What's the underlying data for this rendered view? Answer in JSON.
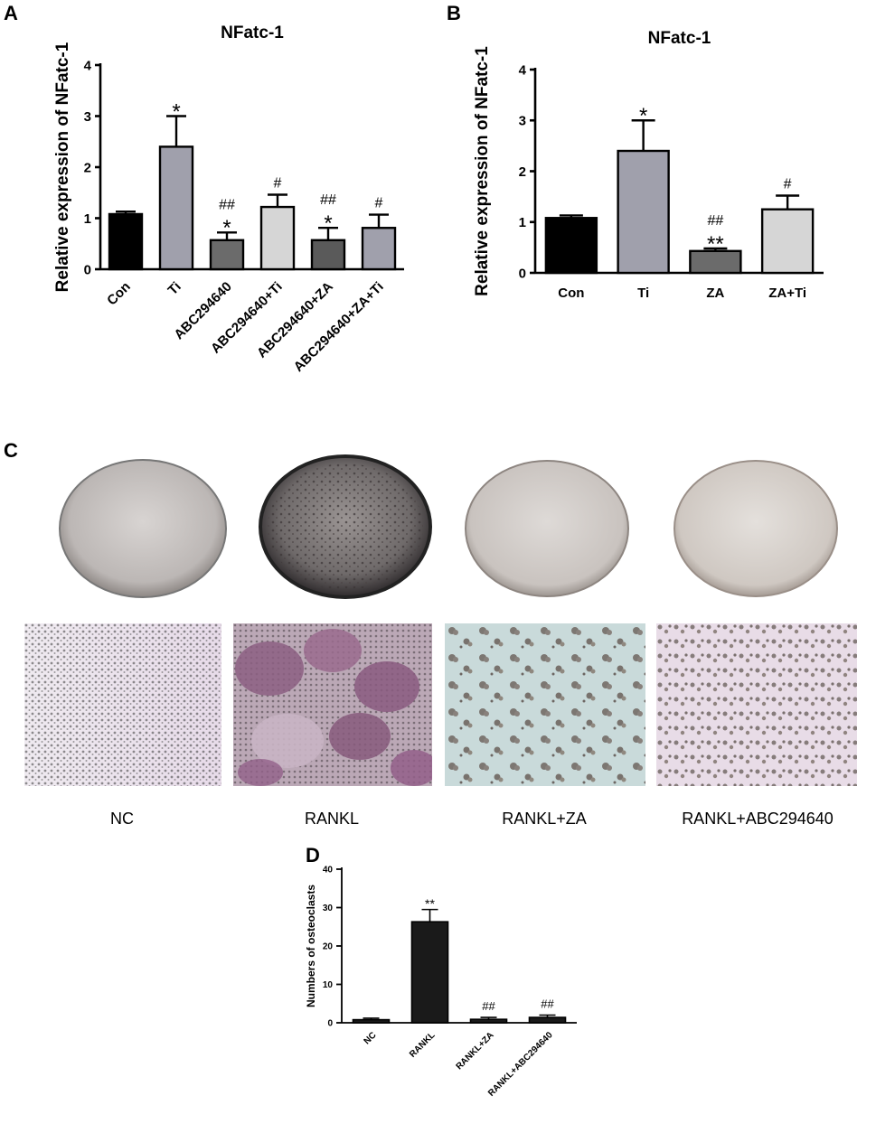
{
  "panels": {
    "A": "A",
    "B": "B",
    "C": "C",
    "D": "D"
  },
  "chart_data": [
    {
      "id": "A",
      "type": "bar",
      "title": "NFatc-1",
      "ylabel": "Relative expression of NFatc-1",
      "ylim": [
        0,
        4
      ],
      "yticks": [
        "0",
        "1",
        "2",
        "3",
        "4"
      ],
      "categories": [
        "Con",
        "Ti",
        "ABC294640",
        "ABC294640+Ti",
        "ABC294640+ZA",
        "ABC294640+ZA+Ti"
      ],
      "values": [
        1.08,
        2.4,
        0.57,
        1.22,
        0.57,
        0.81
      ],
      "errors": [
        0.05,
        0.6,
        0.15,
        0.24,
        0.24,
        0.26
      ],
      "annotations": [
        "",
        "*",
        "##\n*",
        "#",
        "##\n*",
        "#"
      ],
      "bar_colors": [
        "#000000",
        "#a0a0ac",
        "#6b6b6b",
        "#d6d6d6",
        "#5a5a5a",
        "#a0a0ac"
      ]
    },
    {
      "id": "B",
      "type": "bar",
      "title": "NFatc-1",
      "ylabel": "Relative expression of NFatc-1",
      "ylim": [
        0,
        4
      ],
      "yticks": [
        "0",
        "1",
        "2",
        "3",
        "4"
      ],
      "categories": [
        "Con",
        "Ti",
        "ZA",
        "ZA+Ti"
      ],
      "values": [
        1.08,
        2.4,
        0.43,
        1.25
      ],
      "errors": [
        0.05,
        0.6,
        0.05,
        0.27
      ],
      "annotations": [
        "",
        "*",
        "##\n**",
        "#"
      ],
      "bar_colors": [
        "#000000",
        "#a0a0ac",
        "#6b6b6b",
        "#d6d6d6"
      ]
    },
    {
      "id": "D",
      "type": "bar",
      "title": "",
      "ylabel": "Numbers of osteoclasts",
      "ylim": [
        0,
        40
      ],
      "yticks": [
        "0",
        "10",
        "20",
        "30",
        "40"
      ],
      "categories": [
        "NC",
        "RANKL",
        "RANKL+ZA",
        "RANKL+ABC294640"
      ],
      "values": [
        0.8,
        26.3,
        0.9,
        1.4
      ],
      "errors": [
        0.4,
        3.2,
        0.5,
        0.6
      ],
      "annotations": [
        "",
        "**",
        "##",
        "##"
      ],
      "bar_colors": [
        "#1a1a1a",
        "#1a1a1a",
        "#1a1a1a",
        "#1a1a1a"
      ]
    }
  ],
  "panel_c": {
    "groups": [
      "NC",
      "RANKL",
      "RANKL+ZA",
      "RANKL+ABC294640"
    ]
  }
}
